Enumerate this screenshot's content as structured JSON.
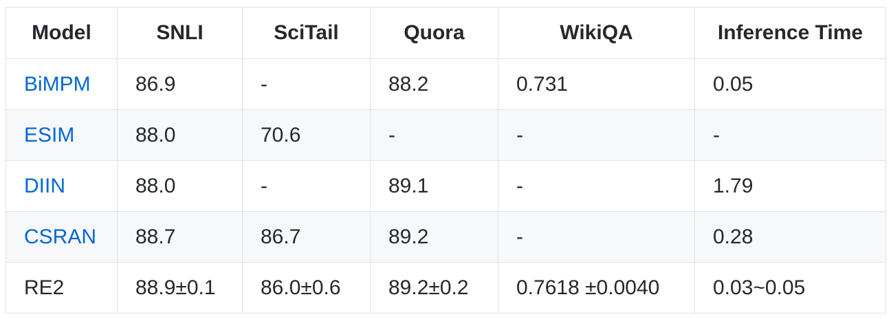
{
  "table": {
    "header": [
      "Model",
      "SNLI",
      "SciTail",
      "Quora",
      "WikiQA",
      "Inference Time"
    ],
    "rows": [
      [
        "BiMPM",
        "86.9",
        "-",
        "88.2",
        "0.731",
        "0.05"
      ],
      [
        "ESIM",
        "88.0",
        "70.6",
        "-",
        "-",
        "-"
      ],
      [
        "DIIN",
        "88.0",
        "-",
        "89.1",
        "-",
        "1.79"
      ],
      [
        "CSRAN",
        "88.7",
        "86.7",
        "89.2",
        "-",
        "0.28"
      ],
      [
        "RE2",
        "88.9±0.1",
        "86.0±0.6",
        "89.2±0.2",
        "0.7618 ±0.0040",
        "0.03~0.05"
      ]
    ]
  }
}
